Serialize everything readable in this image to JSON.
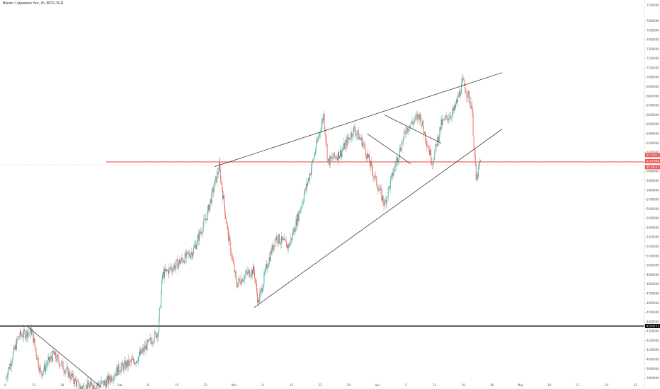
{
  "header": {
    "symbol_title": "Bitcoin / Japanese Yen, 4h, BITFLYER",
    "top_right_price": "7700000"
  },
  "colors": {
    "up": "#26a69a",
    "down": "#ef5350",
    "horizontal_red": "#ef5350",
    "horizontal_black": "#000000",
    "trendline": "#222222",
    "tag_red": "#ef5350",
    "tag_dark": "#000000"
  },
  "price_tags": [
    {
      "label": "6172917",
      "color": "#ef5350",
      "price": 6172917
    },
    {
      "label": "6107990",
      "color": "#ef5350",
      "price": 6107990
    },
    {
      "label": "05:58:47",
      "color": "#ef5350",
      "price": 6045000
    },
    {
      "label": "4354773",
      "color": "#000000",
      "price": 4354773
    }
  ],
  "chart_data": {
    "type": "candlestick",
    "title": "Bitcoin / Japanese Yen, 4h, BITFLYER",
    "xlabel": "",
    "ylabel": "",
    "x_tick_labels": [
      "4",
      "11",
      "18",
      "25",
      "Feb",
      "8",
      "15",
      "22",
      "Mar",
      "8",
      "15",
      "22",
      "29",
      "Apr",
      "5",
      "12",
      "19",
      "26",
      "May",
      "10",
      "17",
      "24",
      "31"
    ],
    "y_tick_labels": [
      "3700000",
      "3800000",
      "3900000",
      "4000000",
      "4100000",
      "4200000",
      "4300000",
      "4400000",
      "4500000",
      "4600000",
      "4700000",
      "4800000",
      "4900000",
      "5000000",
      "5100000",
      "5200000",
      "5300000",
      "5400000",
      "5500000",
      "5600000",
      "5700000",
      "5800000",
      "5900000",
      "6000000",
      "6100000",
      "6200000",
      "6300000",
      "6400000",
      "6500000",
      "6600000",
      "6700000",
      "6800000",
      "6900000",
      "7000000",
      "7100000",
      "7200000",
      "7300000",
      "7400000",
      "7500000",
      "7600000"
    ],
    "ylim": [
      3700000,
      7800000
    ],
    "path_points": [
      [
        "2021-01-04",
        3800000
      ],
      [
        "2021-01-07",
        4250000
      ],
      [
        "2021-01-10",
        4300000
      ],
      [
        "2021-01-12",
        3850000
      ],
      [
        "2021-01-15",
        4050000
      ],
      [
        "2021-01-21",
        3700000
      ],
      [
        "2021-01-27",
        3750000
      ],
      [
        "2021-01-30",
        3900000
      ],
      [
        "2021-02-03",
        4000000
      ],
      [
        "2021-02-08",
        4300000
      ],
      [
        "2021-02-09",
        4900000
      ],
      [
        "2021-02-12",
        5000000
      ],
      [
        "2021-02-16",
        5150000
      ],
      [
        "2021-02-19",
        5500000
      ],
      [
        "2021-02-22",
        6050000
      ],
      [
        "2021-02-24",
        5350000
      ],
      [
        "2021-02-26",
        4800000
      ],
      [
        "2021-02-28",
        4900000
      ],
      [
        "2021-03-02",
        4950000
      ],
      [
        "2021-03-03",
        4600000
      ],
      [
        "2021-03-05",
        5000000
      ],
      [
        "2021-03-07",
        5300000
      ],
      [
        "2021-03-10",
        5200000
      ],
      [
        "2021-03-12",
        5500000
      ],
      [
        "2021-03-15",
        6000000
      ],
      [
        "2021-03-18",
        6600000
      ],
      [
        "2021-03-19",
        6100000
      ],
      [
        "2021-03-22",
        6200000
      ],
      [
        "2021-03-25",
        6450000
      ],
      [
        "2021-03-27",
        6300000
      ],
      [
        "2021-03-30",
        5900000
      ],
      [
        "2021-04-01",
        5650000
      ],
      [
        "2021-04-03",
        6000000
      ],
      [
        "2021-04-06",
        6450000
      ],
      [
        "2021-04-09",
        6600000
      ],
      [
        "2021-04-12",
        6100000
      ],
      [
        "2021-04-14",
        6500000
      ],
      [
        "2021-04-17",
        6650000
      ],
      [
        "2021-04-19",
        6950000
      ],
      [
        "2021-04-21",
        6700000
      ],
      [
        "2021-04-22",
        5900000
      ],
      [
        "2021-04-23",
        6110000
      ]
    ],
    "horizontal_lines": [
      {
        "price": 6100000,
        "color": "#ef5350"
      },
      {
        "price": 4354773,
        "color": "#000000"
      }
    ],
    "trend_lines": [
      {
        "x1": "2021-02-21",
        "y1": 6050000,
        "x2": "2021-04-28",
        "y2": 7050000
      },
      {
        "x1": "2021-03-02",
        "y1": 4550000,
        "x2": "2021-04-28",
        "y2": 6450000
      },
      {
        "x1": "2021-04-01",
        "y1": 6600000,
        "x2": "2021-04-14",
        "y2": 6300000
      },
      {
        "x1": "2021-03-28",
        "y1": 6400000,
        "x2": "2021-04-07",
        "y2": 6080000
      },
      {
        "x1": "2021-01-09",
        "y1": 4350000,
        "x2": "2021-01-26",
        "y2": 3700000
      }
    ]
  }
}
